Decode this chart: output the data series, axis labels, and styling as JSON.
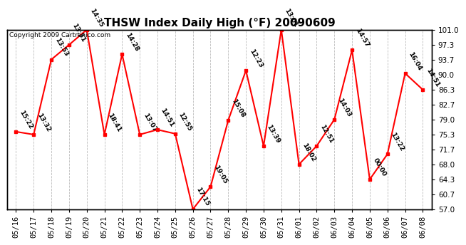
{
  "title": "THSW Index Daily High (°F) 20090609",
  "copyright": "Copyright 2009 Cartrenico.com",
  "dates": [
    "05/16",
    "05/17",
    "05/18",
    "05/19",
    "05/20",
    "05/21",
    "05/22",
    "05/23",
    "05/24",
    "05/25",
    "05/26",
    "05/27",
    "05/28",
    "05/29",
    "05/30",
    "05/31",
    "06/01",
    "06/02",
    "06/03",
    "06/04",
    "06/05",
    "06/06",
    "06/07",
    "06/08"
  ],
  "values": [
    76.0,
    75.3,
    93.7,
    97.3,
    101.0,
    75.3,
    95.0,
    75.3,
    76.5,
    75.5,
    57.0,
    62.5,
    78.8,
    91.0,
    72.5,
    101.0,
    68.0,
    72.5,
    79.0,
    96.0,
    64.3,
    70.5,
    90.3,
    86.3
  ],
  "labels": [
    "15:22",
    "13:32",
    "13:53",
    "13:31",
    "14:35",
    "18:41",
    "14:28",
    "13:07",
    "14:51",
    "12:55",
    "17:15",
    "19:05",
    "15:08",
    "12:23",
    "13:39",
    "13:01",
    "18:02",
    "12:51",
    "14:03",
    "14:57",
    "00:00",
    "13:22",
    "16:04",
    "14:51"
  ],
  "ylim": [
    57.0,
    101.0
  ],
  "yticks": [
    57.0,
    60.7,
    64.3,
    68.0,
    71.7,
    75.3,
    79.0,
    82.7,
    86.3,
    90.0,
    93.7,
    97.3,
    101.0
  ],
  "line_color": "red",
  "marker_color": "red",
  "grid_color": "#bbbbbb",
  "bg_color": "#ffffff",
  "title_fontsize": 11,
  "label_fontsize": 6.5,
  "tick_fontsize": 7.5,
  "copyright_fontsize": 6.5
}
